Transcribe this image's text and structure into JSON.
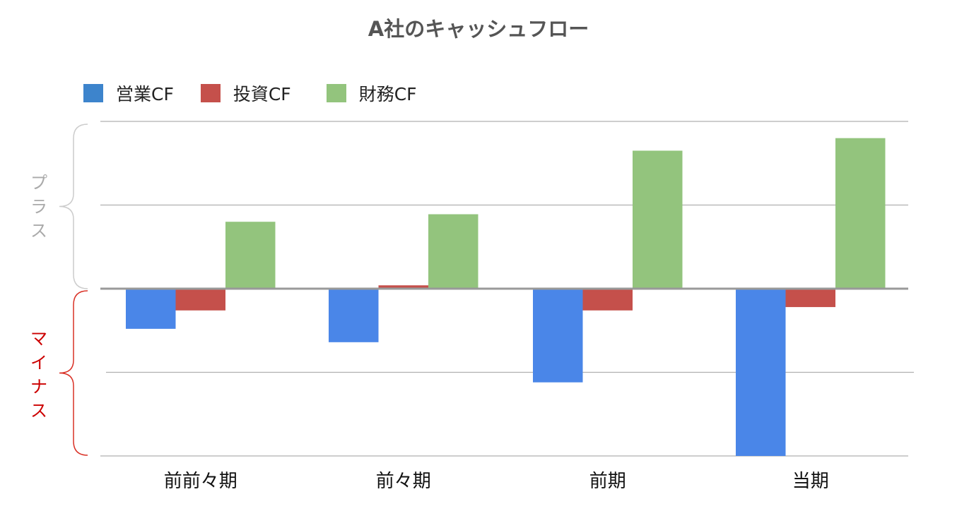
{
  "chart_data": {
    "type": "bar",
    "title": "A社のキャッシュフロー",
    "categories": [
      "前前々期",
      "前々期",
      "前期",
      "当期"
    ],
    "series": [
      {
        "name": "営業CF",
        "color": "#4a86e8",
        "values": [
          -0.48,
          -0.64,
          -1.12,
          -2.0
        ]
      },
      {
        "name": "投資CF",
        "color": "#c5504b",
        "values": [
          -0.26,
          0.04,
          -0.26,
          -0.22
        ]
      },
      {
        "name": "財務CF",
        "color": "#93c47d",
        "values": [
          0.8,
          0.89,
          1.65,
          1.8
        ]
      }
    ],
    "ylim": [
      -2.0,
      2.0
    ],
    "grid": true,
    "legend_position": "top-left",
    "annotations": {
      "plus_label": "プラス",
      "plus_color": "#aaaaaa",
      "minus_label": "マイナス",
      "minus_color": "#cc0000"
    }
  }
}
